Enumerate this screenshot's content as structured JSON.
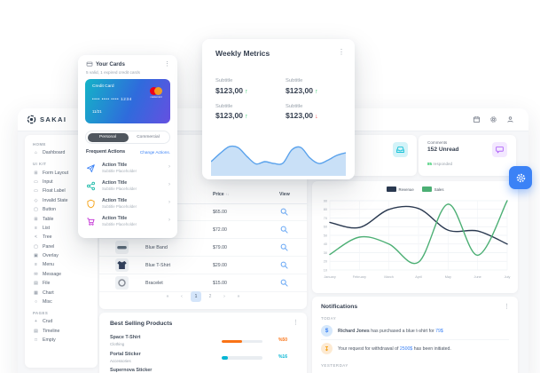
{
  "app": {
    "name": "SAKAI"
  },
  "icons": {
    "kebab": "⋮",
    "chevron": "›",
    "sort": "↑↓"
  },
  "sidebar": {
    "sections": [
      {
        "label": "HOME",
        "items": [
          {
            "label": "Dashboard",
            "icon": "⌂",
            "icon_name": "home-icon"
          }
        ]
      },
      {
        "label": "UI KIT",
        "items": [
          {
            "label": "Form Layout",
            "icon": "⊞",
            "icon_name": "form-layout-icon"
          },
          {
            "label": "Input",
            "icon": "▭",
            "icon_name": "input-icon"
          },
          {
            "label": "Float Label",
            "icon": "▭",
            "icon_name": "float-label-icon"
          },
          {
            "label": "Invalid State",
            "icon": "◇",
            "icon_name": "invalid-state-icon"
          },
          {
            "label": "Button",
            "icon": "▢",
            "icon_name": "button-icon"
          },
          {
            "label": "Table",
            "icon": "⊞",
            "icon_name": "table-icon"
          },
          {
            "label": "List",
            "icon": "≡",
            "icon_name": "list-icon"
          },
          {
            "label": "Tree",
            "icon": "<",
            "icon_name": "tree-icon"
          },
          {
            "label": "Panel",
            "icon": "▢",
            "icon_name": "panel-icon"
          },
          {
            "label": "Overlay",
            "icon": "▣",
            "icon_name": "overlay-icon"
          },
          {
            "label": "Menu",
            "icon": "≡",
            "icon_name": "menu-icon"
          },
          {
            "label": "Message",
            "icon": "✉",
            "icon_name": "message-icon"
          },
          {
            "label": "File",
            "icon": "▤",
            "icon_name": "file-icon"
          },
          {
            "label": "Chart",
            "icon": "▦",
            "icon_name": "chart-icon"
          },
          {
            "label": "Misc",
            "icon": "○",
            "icon_name": "misc-icon"
          }
        ]
      },
      {
        "label": "PAGES",
        "items": [
          {
            "label": "Crud",
            "icon": "+",
            "icon_name": "crud-icon"
          },
          {
            "label": "Timeline",
            "icon": "▤",
            "icon_name": "timeline-icon"
          },
          {
            "label": "Empty",
            "icon": "□",
            "icon_name": "empty-icon"
          }
        ]
      }
    ]
  },
  "stat_cards": {
    "customers_partial": {
      "icon_name": "inbox-icon",
      "icon_color": "#00BCD4",
      "icon_bg": "#D3F3F8"
    },
    "comments": {
      "label": "Comments",
      "value": "152 Unread",
      "meta_value": "85",
      "meta_text": " responded",
      "icon_name": "comment-icon",
      "icon_color": "#A855F7",
      "icon_bg": "#F3E8FF"
    }
  },
  "your_cards": {
    "title": "Your Cards",
    "subtitle": "5 valid, 1 expired credit cards",
    "credit_card": {
      "type": "Credit Card",
      "number": "•••• •••• •••• 1234",
      "expiry": "11/21",
      "brand": "mastercard"
    },
    "toggle": {
      "selected": "Personal",
      "other": "Commercial"
    },
    "frequent_actions_label": "Frequent Actions",
    "change_actions_label": "Change Actions.",
    "actions": [
      {
        "title": "Action Title",
        "subtitle": "Subtitle Placeholder",
        "kind": "send",
        "icon_name": "send-icon"
      },
      {
        "title": "Action Title",
        "subtitle": "Subtitle Placeholder",
        "kind": "share",
        "icon_name": "share-icon"
      },
      {
        "title": "Action Title",
        "subtitle": "Subtitle Placeholder",
        "kind": "shield",
        "icon_name": "shield-icon"
      },
      {
        "title": "Action Title",
        "subtitle": "Subtitle Placeholder",
        "kind": "cart",
        "icon_name": "cart-icon"
      }
    ]
  },
  "weekly_metrics": {
    "title": "Weekly Metrics",
    "metrics": [
      {
        "label": "Subtitle",
        "value": "$123,00",
        "arrow": "↑",
        "arrow_color": "#22C55E"
      },
      {
        "label": "Subtitle",
        "value": "$123,00",
        "arrow": "↑",
        "arrow_color": "#22C55E"
      },
      {
        "label": "Subtitle",
        "value": "$123,00",
        "arrow": "↑",
        "arrow_color": "#22C55E"
      },
      {
        "label": "Subtitle",
        "value": "$123,00",
        "arrow": "↓",
        "arrow_color": "#EF4444"
      }
    ]
  },
  "sales_table": {
    "columns": {
      "price": "Price",
      "view": "View"
    },
    "rows": [
      {
        "name": "",
        "price": "$65.00",
        "thumb": ""
      },
      {
        "name": "",
        "price": "$72.00",
        "thumb": ""
      },
      {
        "name": "Blue Band",
        "price": "$79.00",
        "thumb": "band"
      },
      {
        "name": "Blue T-Shirt",
        "price": "$29.00",
        "thumb": "shirt"
      },
      {
        "name": "Bracelet",
        "price": "$15.00",
        "thumb": "ring"
      }
    ],
    "pagination": [
      {
        "label": "«",
        "active": ""
      },
      {
        "label": "‹",
        "active": ""
      },
      {
        "label": "1",
        "active": "yes"
      },
      {
        "label": "2",
        "active": ""
      },
      {
        "label": "›",
        "active": ""
      },
      {
        "label": "»",
        "active": ""
      }
    ]
  },
  "best_selling": {
    "title": "Best Selling Products",
    "items": [
      {
        "name": "Space T-Shirt",
        "category": "Clothing",
        "pct": "%50",
        "bar_width": "50%",
        "color": "#F97316"
      },
      {
        "name": "Portal Sticker",
        "category": "Accessories",
        "pct": "%16",
        "bar_width": "16%",
        "color": "#06B6D4"
      },
      {
        "name": "Supernova Sticker",
        "category": "",
        "pct": "",
        "bar_width": "0%",
        "color": ""
      }
    ]
  },
  "notifications": {
    "title": "Notifications",
    "sections": [
      {
        "label": "TODAY",
        "items": [
          {
            "avatar_glyph": "$",
            "avatar_color": "#3B82F6",
            "avatar_bg": "#D6E8FB",
            "icon_name": "dollar-icon",
            "bold": "Richard Jones",
            "text": " has purchased a blue t-shirt for ",
            "amount": "79$",
            "suffix": ""
          },
          {
            "avatar_glyph": "↧",
            "avatar_color": "#F59E0B",
            "avatar_bg": "#FDEAD2",
            "icon_name": "download-icon",
            "bold": "",
            "text": "Your request for withdrawal of ",
            "amount": "2500$",
            "suffix": " has been initiated."
          }
        ]
      },
      {
        "label": "YESTERDAY",
        "items": []
      }
    ]
  },
  "chart_data": [
    {
      "type": "area",
      "name": "weekly-metrics-trend",
      "values": [
        38,
        60,
        78,
        76,
        52,
        32,
        38,
        33,
        34,
        70,
        76,
        48,
        33,
        42,
        55,
        62
      ],
      "ylim": [
        0,
        100
      ],
      "line_color": "#5AA2EC",
      "fill_color": "#C9E0F7"
    },
    {
      "type": "line",
      "name": "revenue-sales-by-month",
      "categories": [
        "January",
        "February",
        "March",
        "April",
        "May",
        "June",
        "July"
      ],
      "series": [
        {
          "name": "Revenue",
          "color": "#2A3950",
          "values": [
            65,
            59,
            80,
            81,
            56,
            55,
            40
          ]
        },
        {
          "name": "Sales",
          "color": "#4CAF74",
          "values": [
            28,
            48,
            40,
            19,
            86,
            27,
            90
          ]
        }
      ],
      "ylim": [
        10,
        90
      ],
      "ytick_step": 10,
      "grid": true,
      "legend_position": "top"
    }
  ]
}
